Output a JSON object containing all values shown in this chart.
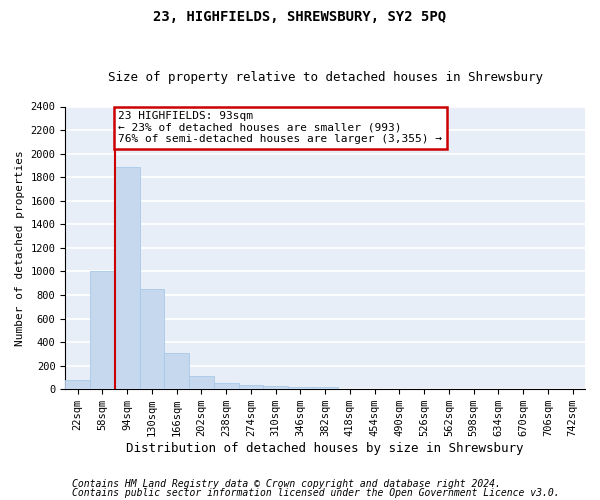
{
  "title": "23, HIGHFIELDS, SHREWSBURY, SY2 5PQ",
  "subtitle": "Size of property relative to detached houses in Shrewsbury",
  "xlabel": "Distribution of detached houses by size in Shrewsbury",
  "ylabel": "Number of detached properties",
  "bar_color": "#c5d8ed",
  "bar_edgecolor": "#a8c8e8",
  "background_color": "#e8eef8",
  "grid_color": "#ffffff",
  "figure_facecolor": "#ffffff",
  "categories": [
    "22sqm",
    "58sqm",
    "94sqm",
    "130sqm",
    "166sqm",
    "202sqm",
    "238sqm",
    "274sqm",
    "310sqm",
    "346sqm",
    "382sqm",
    "418sqm",
    "454sqm",
    "490sqm",
    "526sqm",
    "562sqm",
    "598sqm",
    "634sqm",
    "670sqm",
    "706sqm",
    "742sqm"
  ],
  "values": [
    75,
    1005,
    1890,
    855,
    310,
    110,
    50,
    35,
    25,
    15,
    20,
    0,
    0,
    0,
    0,
    0,
    0,
    0,
    0,
    0,
    0
  ],
  "ylim": [
    0,
    2400
  ],
  "yticks": [
    0,
    200,
    400,
    600,
    800,
    1000,
    1200,
    1400,
    1600,
    1800,
    2000,
    2200,
    2400
  ],
  "annotation_text": "23 HIGHFIELDS: 93sqm\n← 23% of detached houses are smaller (993)\n76% of semi-detached houses are larger (3,355) →",
  "annotation_box_color": "#ffffff",
  "annotation_border_color": "#cc0000",
  "red_line_color": "#cc0000",
  "footer1": "Contains HM Land Registry data © Crown copyright and database right 2024.",
  "footer2": "Contains public sector information licensed under the Open Government Licence v3.0.",
  "title_fontsize": 10,
  "subtitle_fontsize": 9,
  "xlabel_fontsize": 9,
  "ylabel_fontsize": 8,
  "tick_fontsize": 7.5,
  "footer_fontsize": 7,
  "annotation_fontsize": 8
}
